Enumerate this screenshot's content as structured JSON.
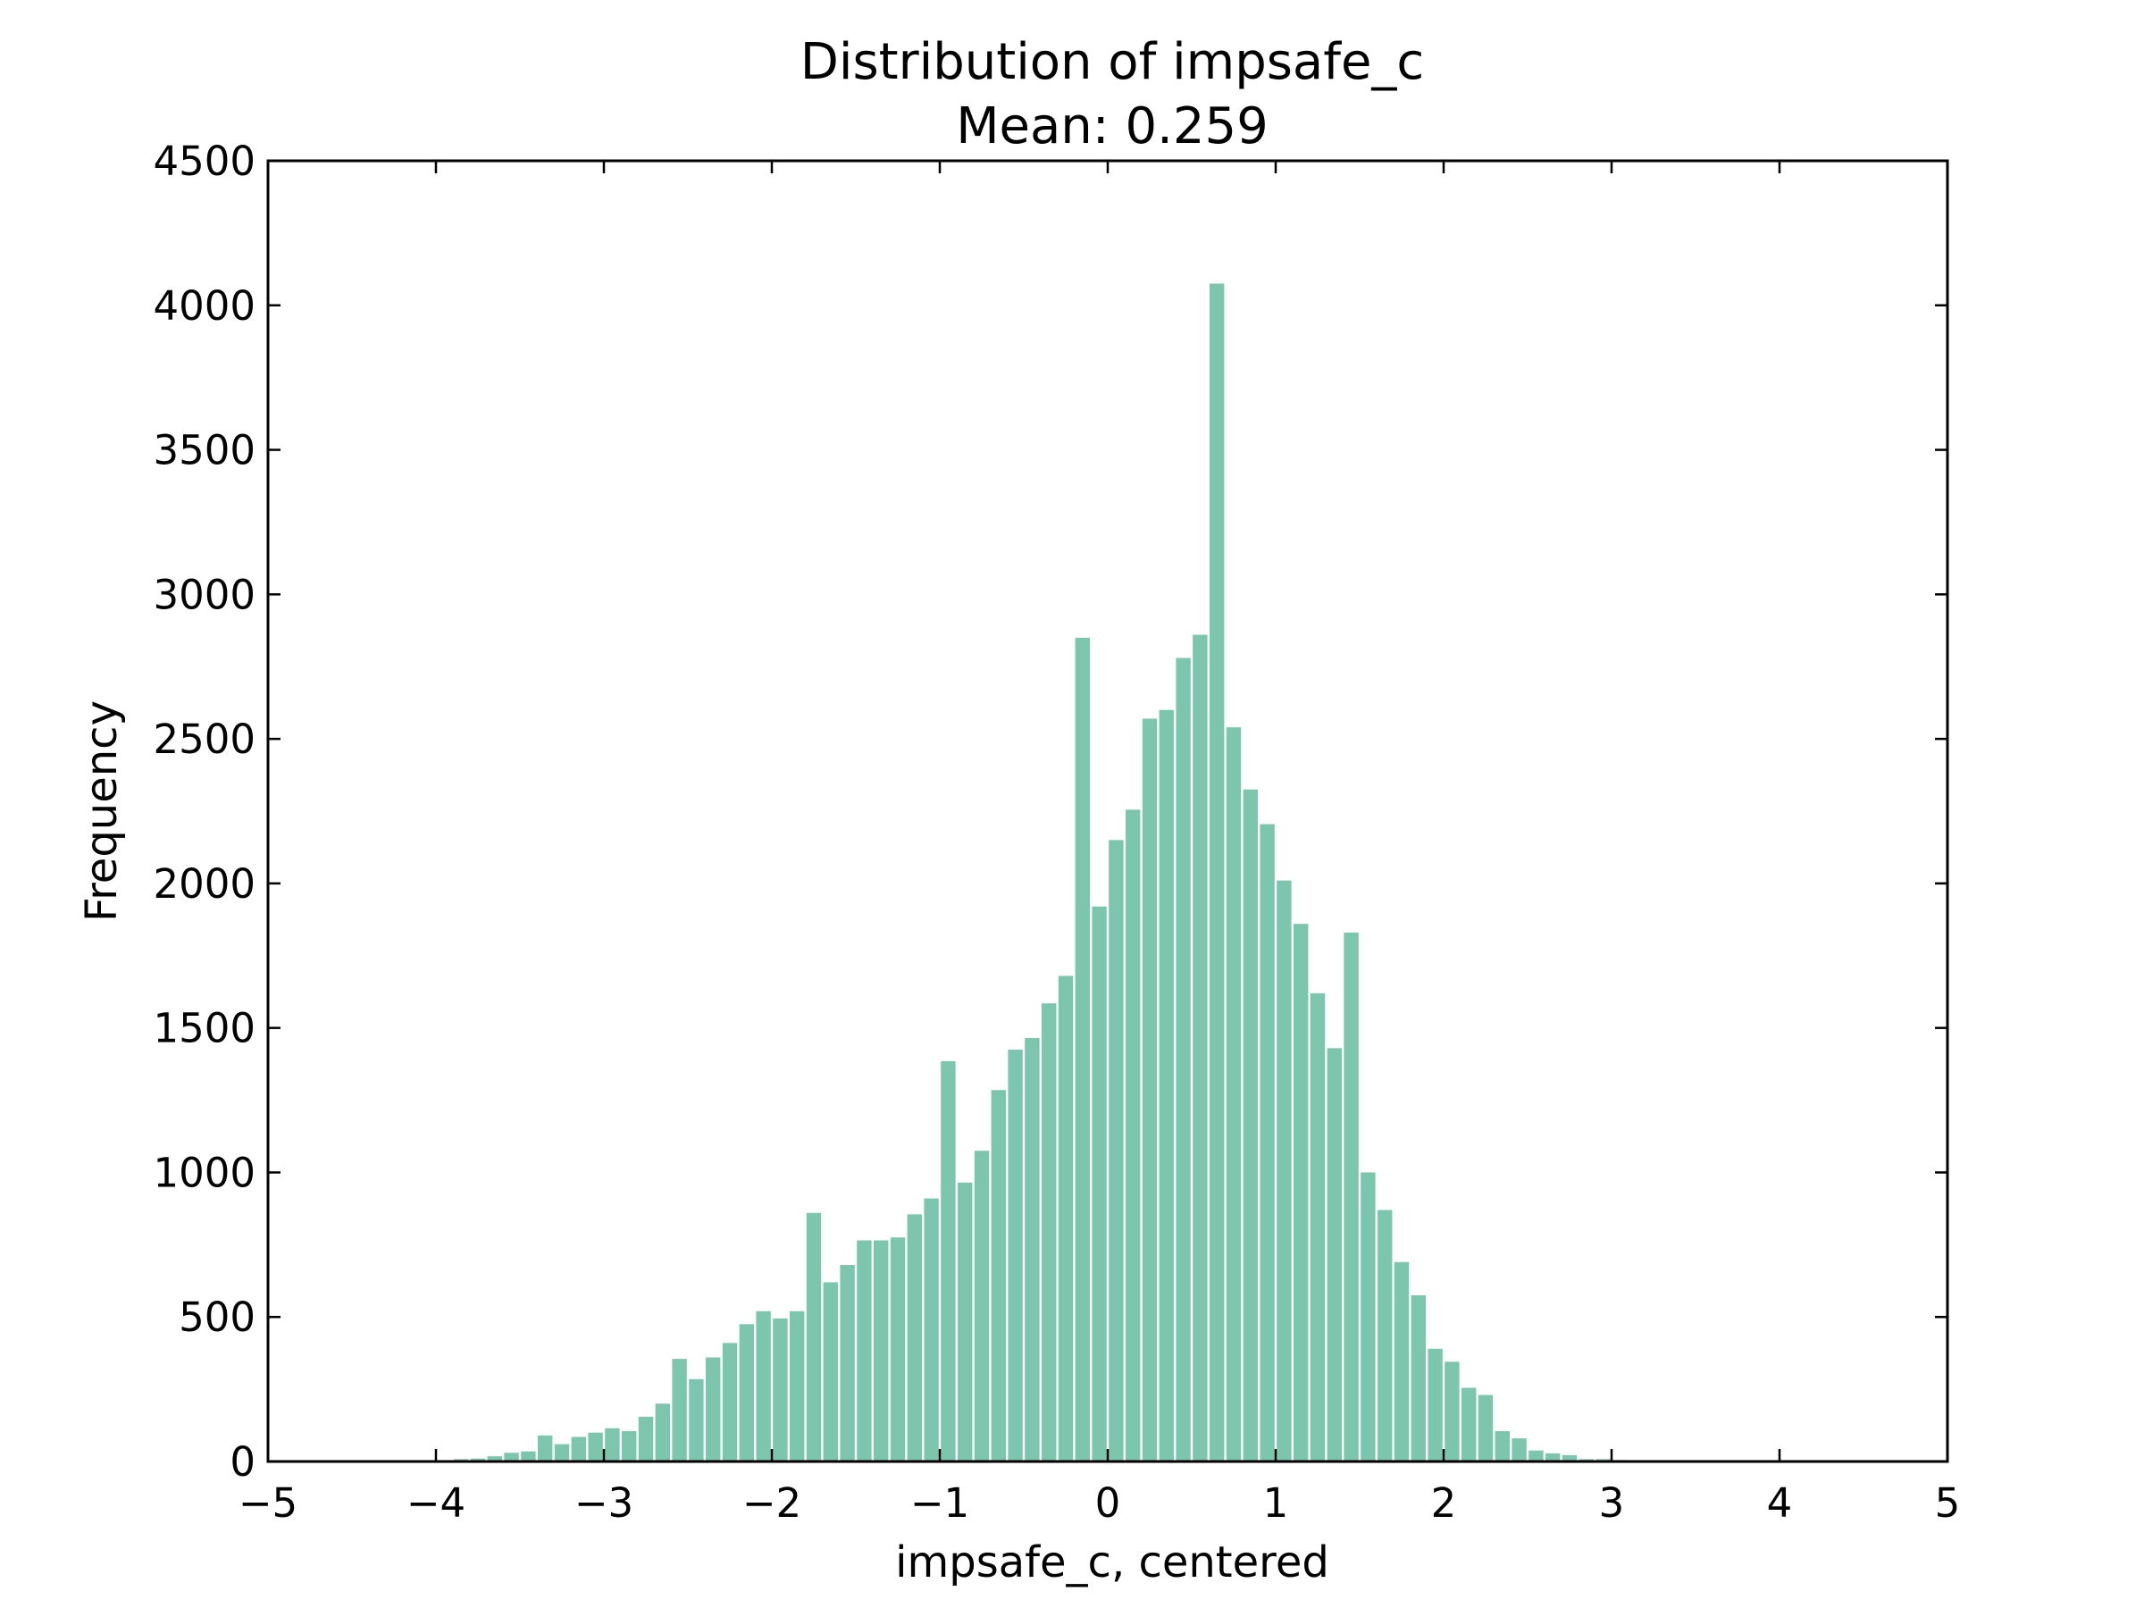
{
  "chart_data": {
    "type": "bar",
    "title": "Distribution of impsafe_c",
    "subtitle": "Mean: 0.259",
    "xlabel": "impsafe_c, centered",
    "ylabel": "Frequency",
    "xlim": [
      -5,
      5
    ],
    "ylim": [
      0,
      4500
    ],
    "xticks": [
      -5,
      -4,
      -3,
      -2,
      -1,
      0,
      1,
      2,
      3,
      4,
      5
    ],
    "xtick_labels": [
      "−5",
      "−4",
      "−3",
      "−2",
      "−1",
      "0",
      "1",
      "2",
      "3",
      "4",
      "5"
    ],
    "yticks": [
      0,
      500,
      1000,
      1500,
      2000,
      2500,
      3000,
      3500,
      4000,
      4500
    ],
    "ytick_labels": [
      "0",
      "500",
      "1000",
      "1500",
      "2000",
      "2500",
      "3000",
      "3500",
      "4000",
      "4500"
    ],
    "bar_color": "#7bc6ad",
    "grid": false,
    "legend": "none",
    "bin_start": -3.9,
    "bin_width": 0.1,
    "values": [
      8,
      10,
      18,
      30,
      35,
      90,
      60,
      85,
      100,
      115,
      105,
      155,
      200,
      355,
      285,
      360,
      410,
      475,
      520,
      495,
      520,
      860,
      620,
      680,
      765,
      765,
      775,
      855,
      910,
      1385,
      965,
      1075,
      1285,
      1425,
      1465,
      1585,
      1680,
      2850,
      1920,
      2150,
      2255,
      2570,
      2600,
      2780,
      2860,
      4075,
      2540,
      2325,
      2205,
      2010,
      1860,
      1620,
      1430,
      1830,
      1000,
      870,
      690,
      575,
      390,
      345,
      255,
      230,
      105,
      80,
      38,
      28,
      22,
      8,
      8,
      5,
      3
    ]
  }
}
